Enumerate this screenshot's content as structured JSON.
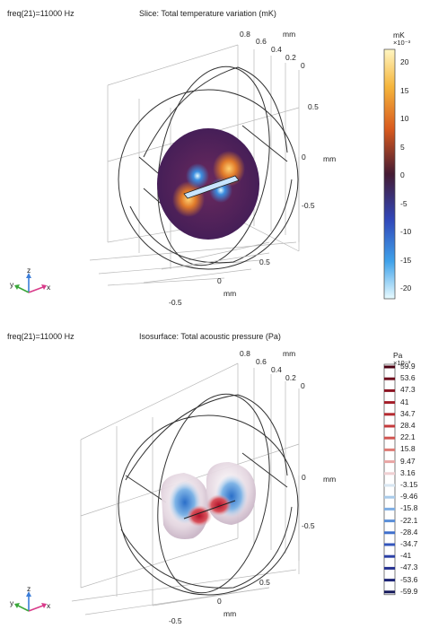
{
  "top": {
    "freq": "freq(21)=11000 Hz",
    "title": "Slice: Total temperature variation (mK)",
    "axis_mm_label": "mm",
    "depth_ticks": [
      "0.8",
      "0.6",
      "0.4",
      "0.2",
      "0"
    ],
    "right_ticks": [
      "0.5",
      "0",
      "-0.5"
    ],
    "bottom_ticks": [
      "0.5",
      "0",
      "-0.5"
    ],
    "colorbar": {
      "unit": "mK",
      "exponent": "×10⁻³",
      "ticks": [
        "20",
        "15",
        "10",
        "5",
        "0",
        "-5",
        "-10",
        "-15",
        "-20"
      ]
    }
  },
  "bottom": {
    "freq": "freq(21)=11000 Hz",
    "title": "Isosurface: Total acoustic pressure (Pa)",
    "axis_mm_label": "mm",
    "depth_ticks": [
      "0.8",
      "0.6",
      "0.4",
      "0.2",
      "0"
    ],
    "right_ticks": [
      "0",
      "-0.5"
    ],
    "bottom_ticks": [
      "0.5",
      "0",
      "-0.5"
    ],
    "legend": {
      "unit": "Pa",
      "exponent": "×10⁻³",
      "levels": [
        "59.9",
        "53.6",
        "47.3",
        "41",
        "34.7",
        "28.4",
        "22.1",
        "15.8",
        "9.47",
        "3.16",
        "-3.15",
        "-9.46",
        "-15.8",
        "-22.1",
        "-28.4",
        "-34.7",
        "-41",
        "-47.3",
        "-53.6",
        "-59.9"
      ],
      "colors": [
        "#4a0012",
        "#6e0a1c",
        "#8b1422",
        "#a31d28",
        "#b52a30",
        "#c43a3c",
        "#d15450",
        "#dd7a74",
        "#e8a5a4",
        "#f0d0d2",
        "#d8e6f2",
        "#a9cbea",
        "#7eade3",
        "#5a8ed8",
        "#3f6fcc",
        "#3355bb",
        "#2b40a6",
        "#24308f",
        "#1c2374",
        "#14185a"
      ]
    }
  },
  "triad": {
    "x": "x",
    "y": "y",
    "z": "z"
  }
}
